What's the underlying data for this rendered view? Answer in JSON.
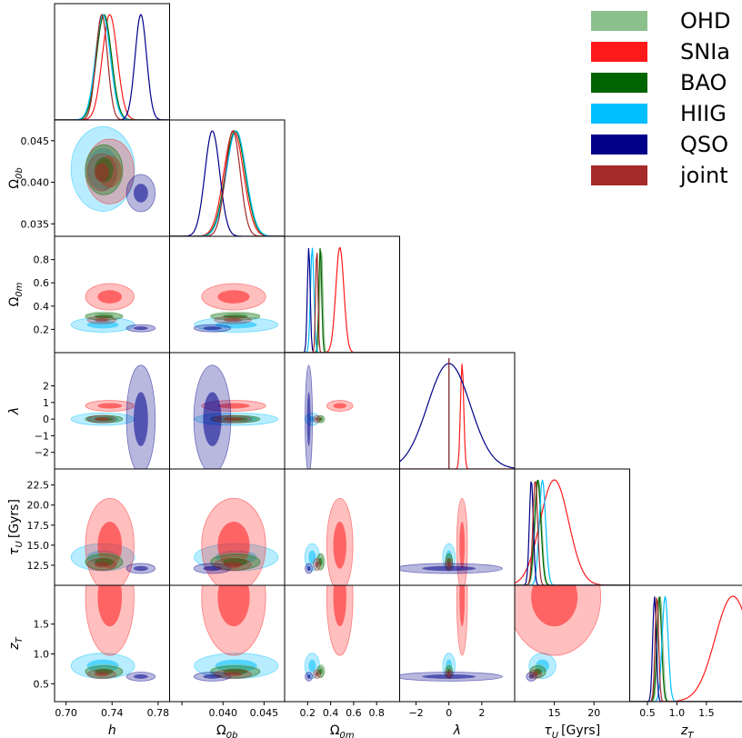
{
  "chart_data": {
    "type": "corner",
    "title": "",
    "parameters": [
      {
        "id": "h",
        "label": "h",
        "sub": "",
        "unit": "",
        "range": [
          0.69,
          0.79
        ],
        "ticks": [
          0.7,
          0.74,
          0.78
        ],
        "tick_labels": [
          "0.70",
          "0.74",
          "0.78"
        ]
      },
      {
        "id": "ob",
        "label": "Ω",
        "sub": "0b",
        "unit": "",
        "range": [
          0.0335,
          0.0475
        ],
        "ticks": [
          0.035,
          0.04,
          0.045
        ],
        "tick_labels": [
          "0.035",
          "0.040",
          "0.045"
        ],
        "x_tick_labels": [
          "",
          "0.040",
          "0.045"
        ]
      },
      {
        "id": "om",
        "label": "Ω",
        "sub": "0m",
        "unit": "",
        "range": [
          0.0,
          1.0
        ],
        "ticks": [
          0.2,
          0.4,
          0.6,
          0.8
        ],
        "tick_labels": [
          "0.2",
          "0.4",
          "0.6",
          "0.8"
        ]
      },
      {
        "id": "lam",
        "label": "λ",
        "sub": "",
        "unit": "",
        "range": [
          -3.0,
          4.0
        ],
        "ticks": [
          -2,
          0,
          2
        ],
        "tick_labels": [
          "−2",
          "0",
          "2"
        ],
        "y_ticks": [
          -2,
          -1,
          0,
          1,
          2
        ],
        "y_tick_labels": [
          "−2",
          "−1",
          "0",
          "1",
          "2"
        ]
      },
      {
        "id": "tau",
        "label": "τ",
        "sub": "U",
        "unit": "[Gyrs]",
        "range": [
          10.0,
          24.5
        ],
        "ticks": [
          15,
          20
        ],
        "tick_labels": [
          "15",
          "20"
        ],
        "y_ticks": [
          12.5,
          15.0,
          17.5,
          20.0,
          22.5
        ],
        "y_tick_labels": [
          "12.5",
          "15.0",
          "17.5",
          "20.0",
          "22.5"
        ]
      },
      {
        "id": "zt",
        "label": "z",
        "sub": "T",
        "unit": "",
        "range": [
          0.2,
          2.15
        ],
        "ticks": [
          0.5,
          1.0,
          1.5
        ],
        "tick_labels": [
          "0.5",
          "1.0",
          "1.5"
        ],
        "x_tick_labels": [
          "0.5",
          "1.0",
          "1.5"
        ],
        "x_ticks": [
          0.5,
          1.0,
          1.5
        ]
      }
    ],
    "zt_x_ticks": [
      0.5,
      1.0,
      1.5
    ],
    "zt_x_tick_labels": [
      "0.5",
      "1.0",
      "1.5"
    ],
    "series": [
      {
        "name": "OHD",
        "color": "#8cc08c",
        "peaks": {
          "h": 0.733,
          "ob": 0.0415,
          "om": 0.32,
          "lam": 0.0,
          "tau": 13.0,
          "zt": 0.72
        },
        "widths": {
          "h": 0.0065,
          "ob": 0.0012,
          "om": 0.012,
          "lam": 0.0,
          "tau": 0.4,
          "zt": 0.04
        }
      },
      {
        "name": "SNIa",
        "color": "#ff1a1a",
        "peaks": {
          "h": 0.738,
          "ob": 0.0413,
          "om": 0.48,
          "lam": 0.8,
          "tau": 15.0,
          "zt": 1.95
        },
        "widths": {
          "h": 0.0065,
          "ob": 0.0012,
          "om": 0.035,
          "lam": 0.1,
          "tau": 1.8,
          "zt": 0.3
        }
      },
      {
        "name": "BAO",
        "color": "#006400",
        "peaks": {
          "h": 0.733,
          "ob": 0.0415,
          "om": 0.31,
          "lam": 0.0,
          "tau": 12.9,
          "zt": 0.7
        },
        "widths": {
          "h": 0.0065,
          "ob": 0.0012,
          "om": 0.012,
          "lam": 0.0,
          "tau": 0.4,
          "zt": 0.04
        }
      },
      {
        "name": "HIIG",
        "color": "#00bfff",
        "peaks": {
          "h": 0.732,
          "ob": 0.0416,
          "om": 0.24,
          "lam": 0.0,
          "tau": 13.5,
          "zt": 0.8
        },
        "widths": {
          "h": 0.0065,
          "ob": 0.0012,
          "om": 0.015,
          "lam": 0.0,
          "tau": 0.4,
          "zt": 0.05
        }
      },
      {
        "name": "QSO",
        "color": "#00008b",
        "peaks": {
          "h": 0.765,
          "ob": 0.0387,
          "om": 0.21,
          "lam": 0.0,
          "tau": 12.1,
          "zt": 0.62
        },
        "widths": {
          "h": 0.005,
          "ob": 0.0009,
          "om": 0.012,
          "lam": 1.3,
          "tau": 0.25,
          "zt": 0.03
        }
      },
      {
        "name": "joint",
        "color": "#a52a2a",
        "peaks": {
          "h": 0.731,
          "ob": 0.0412,
          "om": 0.28,
          "lam": 0.0,
          "tau": 12.6,
          "zt": 0.66
        },
        "widths": {
          "h": 0.005,
          "ob": 0.0009,
          "om": 0.01,
          "lam": 0.0,
          "tau": 0.3,
          "zt": 0.03
        }
      }
    ],
    "legend_position": "top-right",
    "grid": false
  }
}
